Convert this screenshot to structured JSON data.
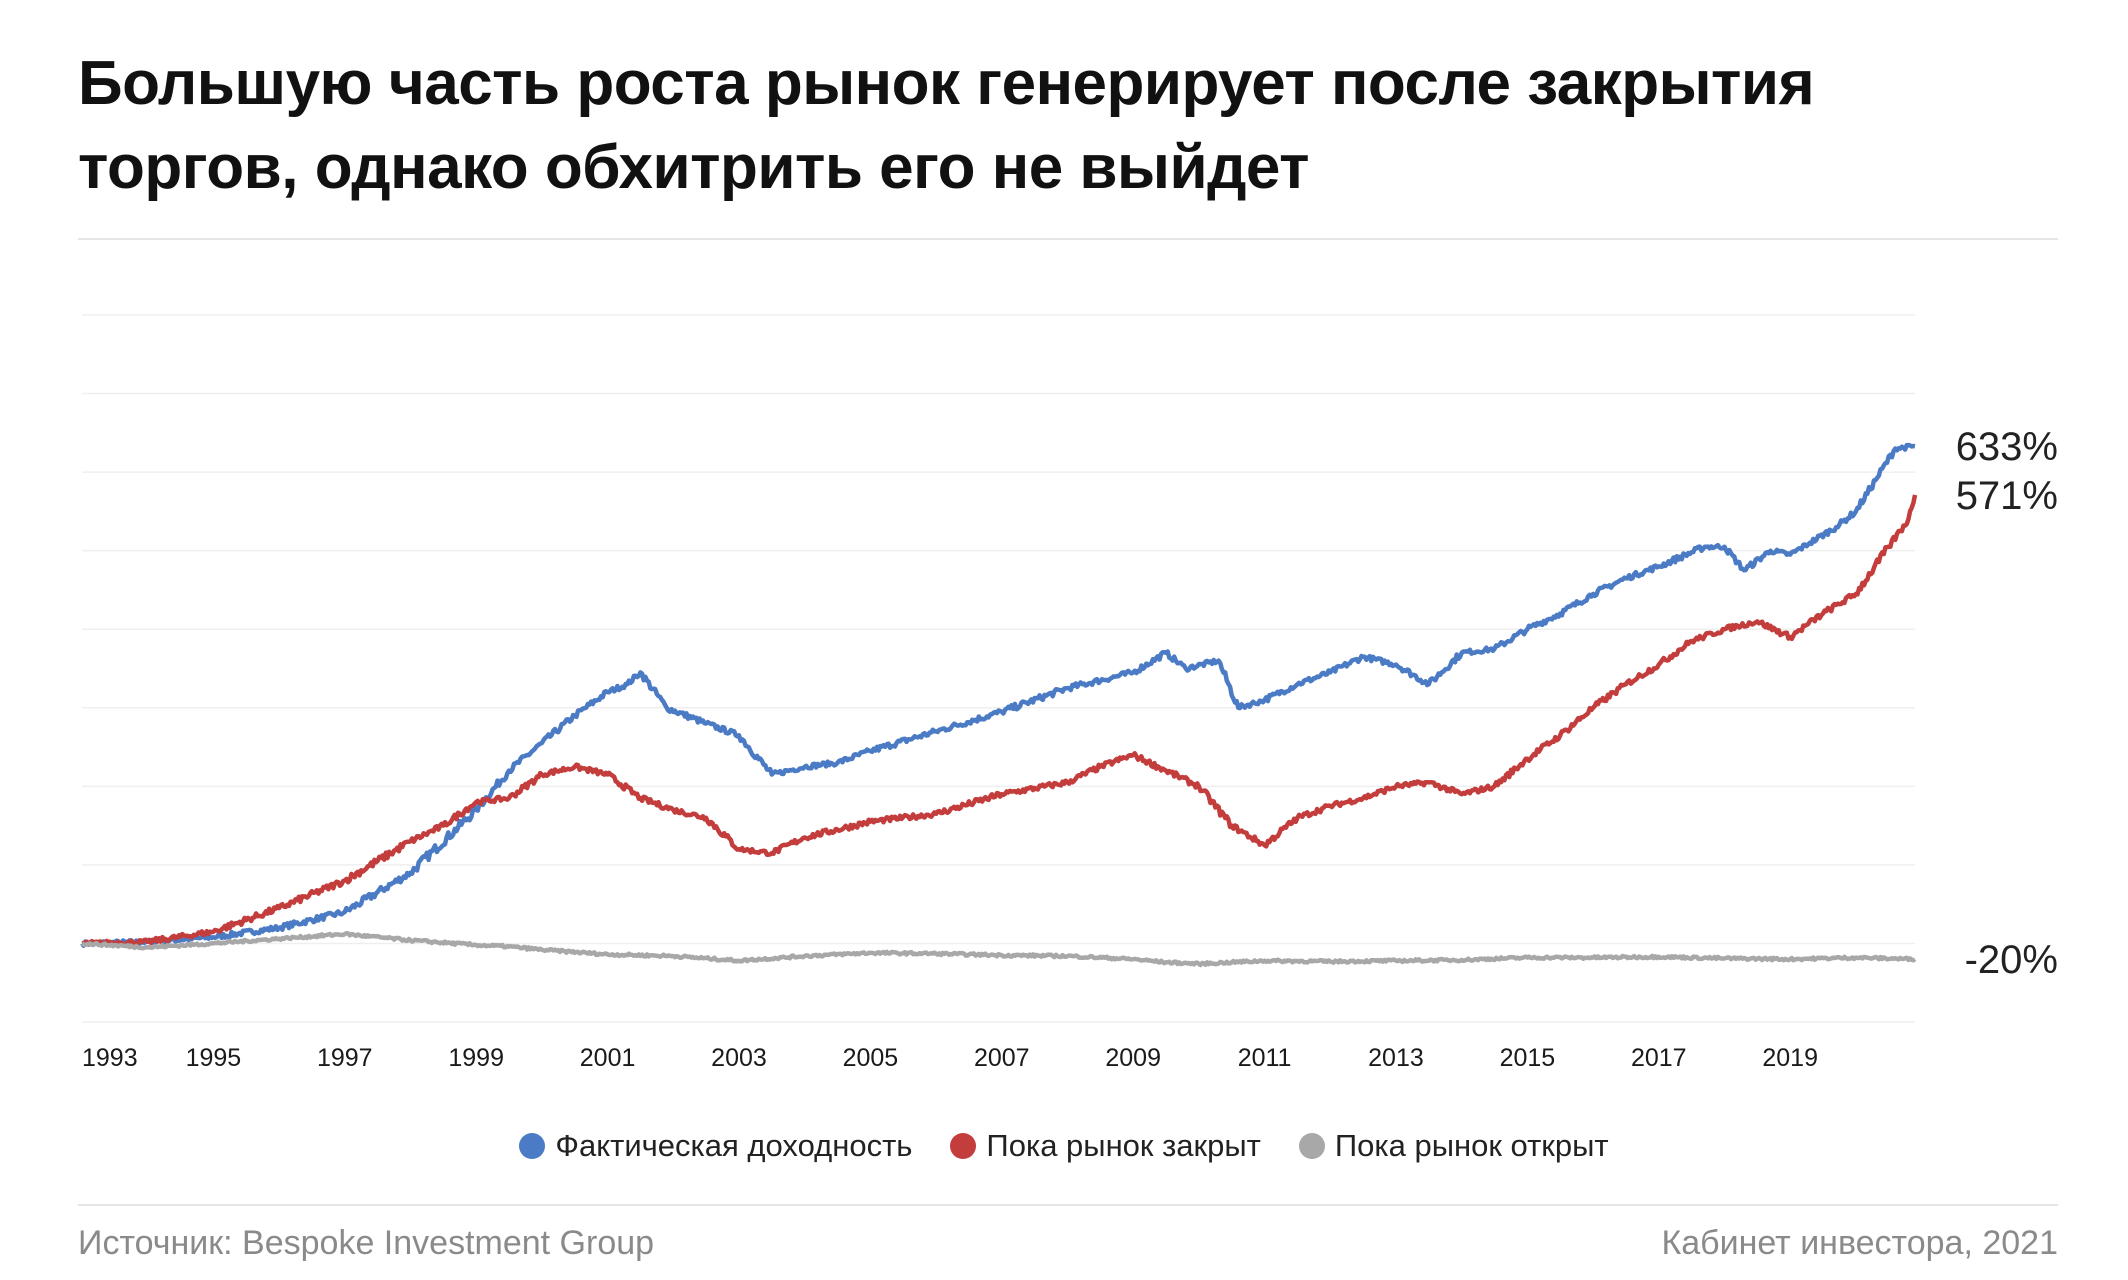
{
  "header": {
    "title_line1": "Большую часть роста рынок генерирует после закрытия",
    "title_line2": "торгов, однако обхитрить его не выйдет"
  },
  "chart_data": {
    "type": "line",
    "title": "Большую часть роста рынок генерирует после закрытия торгов, однако обхитрить его не выйдет",
    "xlabel": "",
    "ylabel": "",
    "x_ticks": [
      "1993",
      "1995",
      "1997",
      "1999",
      "2001",
      "2003",
      "2005",
      "2007",
      "2009",
      "2011",
      "2013",
      "2015",
      "2017",
      "2019"
    ],
    "xlim": [
      1993.0,
      2020.9
    ],
    "ylim": [
      -100,
      800
    ],
    "y_tick_labels_shown": false,
    "grid": true,
    "legend_position": "bottom-center",
    "series": [
      {
        "name": "Фактическая доходность",
        "color": "#4a7bc4",
        "end_label": "633%",
        "points": [
          [
            1993.0,
            0
          ],
          [
            1994.0,
            2
          ],
          [
            1995.0,
            8
          ],
          [
            1996.0,
            20
          ],
          [
            1997.0,
            40
          ],
          [
            1998.0,
            90
          ],
          [
            1999.0,
            170
          ],
          [
            1999.5,
            220
          ],
          [
            2000.0,
            255
          ],
          [
            2000.5,
            290
          ],
          [
            2001.0,
            320
          ],
          [
            2001.3,
            330
          ],
          [
            2001.5,
            345
          ],
          [
            2001.9,
            300
          ],
          [
            2002.5,
            280
          ],
          [
            2003.0,
            265
          ],
          [
            2003.5,
            215
          ],
          [
            2004.0,
            225
          ],
          [
            2004.5,
            230
          ],
          [
            2005.0,
            245
          ],
          [
            2006.0,
            270
          ],
          [
            2007.0,
            295
          ],
          [
            2008.0,
            325
          ],
          [
            2009.0,
            345
          ],
          [
            2009.5,
            370
          ],
          [
            2009.8,
            350
          ],
          [
            2010.3,
            360
          ],
          [
            2010.6,
            300
          ],
          [
            2011.0,
            310
          ],
          [
            2011.5,
            330
          ],
          [
            2012.0,
            345
          ],
          [
            2012.5,
            365
          ],
          [
            2013.0,
            355
          ],
          [
            2013.5,
            330
          ],
          [
            2014.0,
            370
          ],
          [
            2014.5,
            375
          ],
          [
            2015.0,
            400
          ],
          [
            2015.5,
            420
          ],
          [
            2016.0,
            445
          ],
          [
            2016.5,
            465
          ],
          [
            2017.0,
            480
          ],
          [
            2017.7,
            505
          ],
          [
            2018.0,
            505
          ],
          [
            2018.3,
            475
          ],
          [
            2018.7,
            500
          ],
          [
            2019.0,
            495
          ],
          [
            2019.3,
            510
          ],
          [
            2019.7,
            530
          ],
          [
            2020.0,
            550
          ],
          [
            2020.3,
            590
          ],
          [
            2020.6,
            630
          ],
          [
            2020.9,
            633
          ]
        ]
      },
      {
        "name": "Пока рынок закрыт",
        "color": "#c43d3d",
        "end_label": "571%",
        "points": [
          [
            1993.0,
            0
          ],
          [
            1994.0,
            2
          ],
          [
            1995.0,
            15
          ],
          [
            1996.0,
            45
          ],
          [
            1997.0,
            80
          ],
          [
            1998.0,
            130
          ],
          [
            1998.5,
            150
          ],
          [
            1999.0,
            180
          ],
          [
            1999.5,
            185
          ],
          [
            2000.0,
            215
          ],
          [
            2000.5,
            225
          ],
          [
            2001.0,
            215
          ],
          [
            2001.5,
            185
          ],
          [
            2002.0,
            170
          ],
          [
            2002.5,
            160
          ],
          [
            2003.0,
            120
          ],
          [
            2003.5,
            115
          ],
          [
            2004.0,
            135
          ],
          [
            2005.0,
            155
          ],
          [
            2006.0,
            165
          ],
          [
            2007.0,
            190
          ],
          [
            2008.0,
            205
          ],
          [
            2008.5,
            225
          ],
          [
            2009.0,
            240
          ],
          [
            2009.5,
            220
          ],
          [
            2010.0,
            200
          ],
          [
            2010.5,
            150
          ],
          [
            2011.0,
            125
          ],
          [
            2011.5,
            160
          ],
          [
            2012.0,
            175
          ],
          [
            2012.5,
            185
          ],
          [
            2013.0,
            200
          ],
          [
            2013.5,
            205
          ],
          [
            2014.0,
            190
          ],
          [
            2014.5,
            200
          ],
          [
            2015.0,
            235
          ],
          [
            2015.5,
            265
          ],
          [
            2016.0,
            300
          ],
          [
            2016.5,
            330
          ],
          [
            2017.0,
            355
          ],
          [
            2017.5,
            385
          ],
          [
            2018.0,
            400
          ],
          [
            2018.5,
            410
          ],
          [
            2019.0,
            390
          ],
          [
            2019.5,
            420
          ],
          [
            2020.0,
            445
          ],
          [
            2020.5,
            505
          ],
          [
            2020.8,
            540
          ],
          [
            2020.9,
            571
          ]
        ]
      },
      {
        "name": "Пока рынок открыт",
        "color": "#a8a8a8",
        "end_label": "-20%",
        "points": [
          [
            1993.0,
            0
          ],
          [
            1994.0,
            -5
          ],
          [
            1995.0,
            0
          ],
          [
            1996.0,
            6
          ],
          [
            1997.0,
            12
          ],
          [
            1998.0,
            4
          ],
          [
            1999.0,
            -2
          ],
          [
            1999.5,
            -4
          ],
          [
            2000.0,
            -8
          ],
          [
            2001.0,
            -14
          ],
          [
            2002.0,
            -16
          ],
          [
            2003.0,
            -22
          ],
          [
            2004.0,
            -16
          ],
          [
            2005.0,
            -12
          ],
          [
            2006.0,
            -13
          ],
          [
            2007.0,
            -15
          ],
          [
            2008.0,
            -16
          ],
          [
            2009.0,
            -20
          ],
          [
            2009.5,
            -24
          ],
          [
            2010.0,
            -26
          ],
          [
            2010.5,
            -24
          ],
          [
            2011.0,
            -22
          ],
          [
            2012.0,
            -23
          ],
          [
            2013.0,
            -22
          ],
          [
            2014.0,
            -21
          ],
          [
            2015.0,
            -18
          ],
          [
            2016.0,
            -18
          ],
          [
            2017.0,
            -17
          ],
          [
            2018.0,
            -19
          ],
          [
            2019.0,
            -20
          ],
          [
            2020.0,
            -18
          ],
          [
            2020.9,
            -20
          ]
        ]
      }
    ]
  },
  "legend": {
    "items": [
      {
        "label": "Фактическая доходность",
        "color": "#4a7bc4"
      },
      {
        "label": "Пока рынок закрыт",
        "color": "#c43d3d"
      },
      {
        "label": "Пока рынок открыт",
        "color": "#a8a8a8"
      }
    ]
  },
  "footer": {
    "source": "Источник: Bespoke Investment Group",
    "credit": "Кабинет инвестора, 2021"
  }
}
